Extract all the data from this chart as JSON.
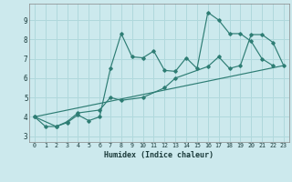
{
  "xlabel": "Humidex (Indice chaleur)",
  "bg_color": "#cce9ed",
  "line_color": "#2e7d74",
  "grid_color": "#b0d8dc",
  "xlim": [
    -0.5,
    23.5
  ],
  "ylim": [
    2.7,
    9.85
  ],
  "yticks": [
    3,
    4,
    5,
    6,
    7,
    8,
    9
  ],
  "xticks": [
    0,
    1,
    2,
    3,
    4,
    5,
    6,
    7,
    8,
    9,
    10,
    11,
    12,
    13,
    14,
    15,
    16,
    17,
    18,
    19,
    20,
    21,
    22,
    23
  ],
  "line1_x": [
    0,
    1,
    2,
    3,
    4,
    5,
    6,
    7,
    8,
    9,
    10,
    11,
    12,
    13,
    14,
    15,
    16,
    17,
    18,
    19,
    20,
    21,
    22
  ],
  "line1_y": [
    4.0,
    3.5,
    3.5,
    3.7,
    4.1,
    3.8,
    4.0,
    6.5,
    8.3,
    7.1,
    7.05,
    7.4,
    6.4,
    6.35,
    7.05,
    6.5,
    9.4,
    9.0,
    8.3,
    8.3,
    7.9,
    7.0,
    6.65
  ],
  "line2_x": [
    0,
    2,
    3,
    4,
    6,
    7,
    8,
    10,
    12,
    13,
    16,
    17,
    18,
    19,
    20,
    21,
    22,
    23
  ],
  "line2_y": [
    4.0,
    3.5,
    3.75,
    4.2,
    4.35,
    5.0,
    4.85,
    5.0,
    5.5,
    6.0,
    6.6,
    7.1,
    6.5,
    6.65,
    8.25,
    8.25,
    7.85,
    6.65
  ],
  "line3_x": [
    0,
    23
  ],
  "line3_y": [
    4.0,
    6.65
  ]
}
